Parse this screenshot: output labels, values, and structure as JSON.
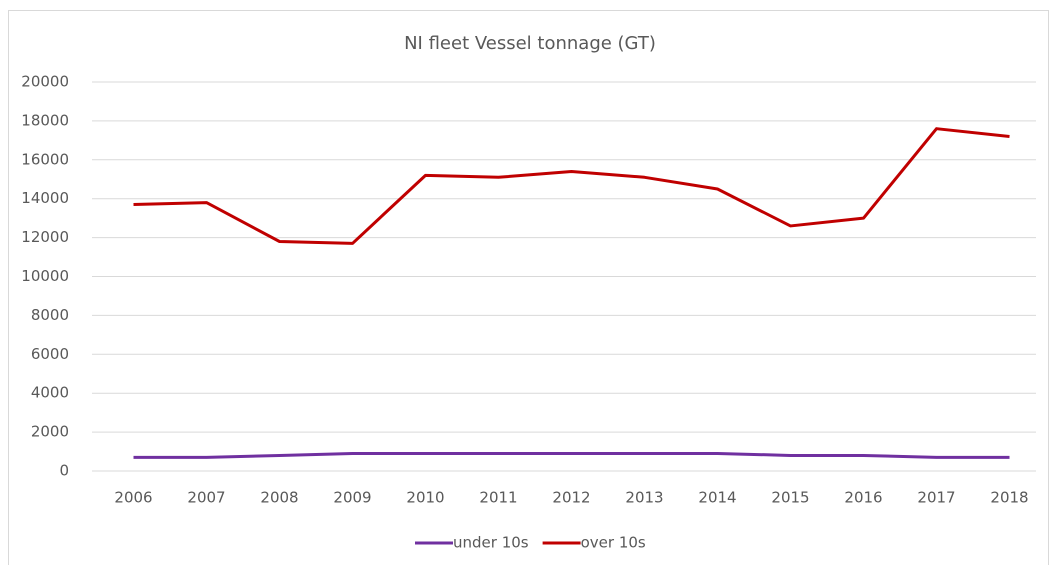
{
  "chart_data": {
    "type": "line",
    "title": "NI fleet Vessel tonnage (GT)",
    "categories": [
      "2006",
      "2007",
      "2008",
      "2009",
      "2010",
      "2011",
      "2012",
      "2013",
      "2014",
      "2015",
      "2016",
      "2017",
      "2018"
    ],
    "series": [
      {
        "name": "under 10s",
        "color": "#7030a0",
        "values": [
          700,
          700,
          800,
          900,
          900,
          900,
          900,
          900,
          900,
          800,
          800,
          700,
          700
        ]
      },
      {
        "name": "over 10s",
        "color": "#c00000",
        "values": [
          13700,
          13800,
          11800,
          11700,
          15200,
          15100,
          15400,
          15100,
          14500,
          12600,
          13000,
          17600,
          17200
        ]
      }
    ],
    "ylim": [
      0,
      20000
    ],
    "yticks": [
      0,
      2000,
      4000,
      6000,
      8000,
      10000,
      12000,
      14000,
      16000,
      18000,
      20000
    ],
    "grid": true,
    "legend": "bottom"
  }
}
